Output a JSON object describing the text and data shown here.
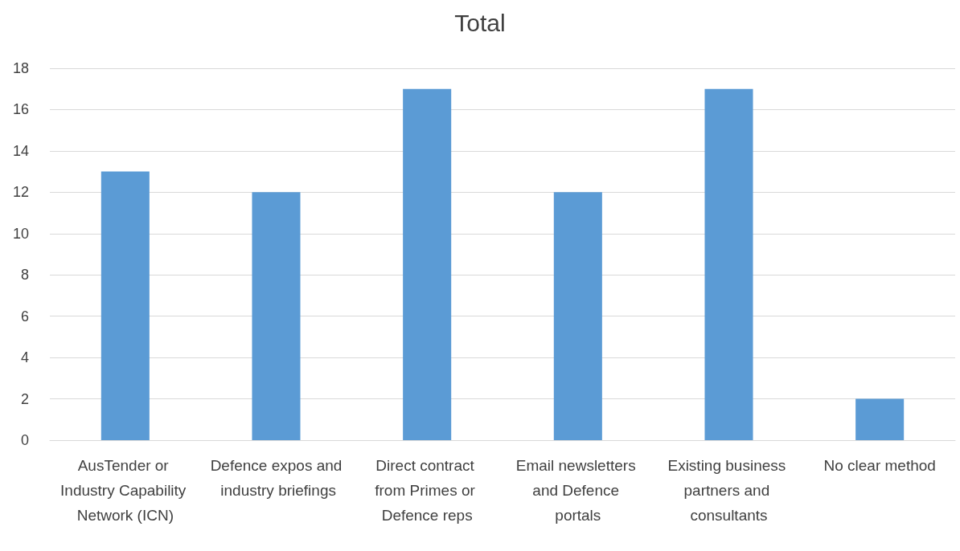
{
  "chart_data": {
    "type": "bar",
    "title": "Total",
    "categories": [
      "AusTender or Industry Capability Network (ICN)",
      "Defence expos and industry briefings",
      "Direct contract from Primes or Defence reps",
      "Email newsletters and Defence portals",
      "Existing business partners and consultants",
      "No clear method"
    ],
    "values": [
      13,
      12,
      17,
      12,
      17,
      2
    ],
    "color": "#5b9bd5",
    "ylim": [
      0,
      18
    ],
    "yticks": [
      0,
      2,
      4,
      6,
      8,
      10,
      12,
      14,
      16,
      18
    ],
    "grid": "y"
  }
}
